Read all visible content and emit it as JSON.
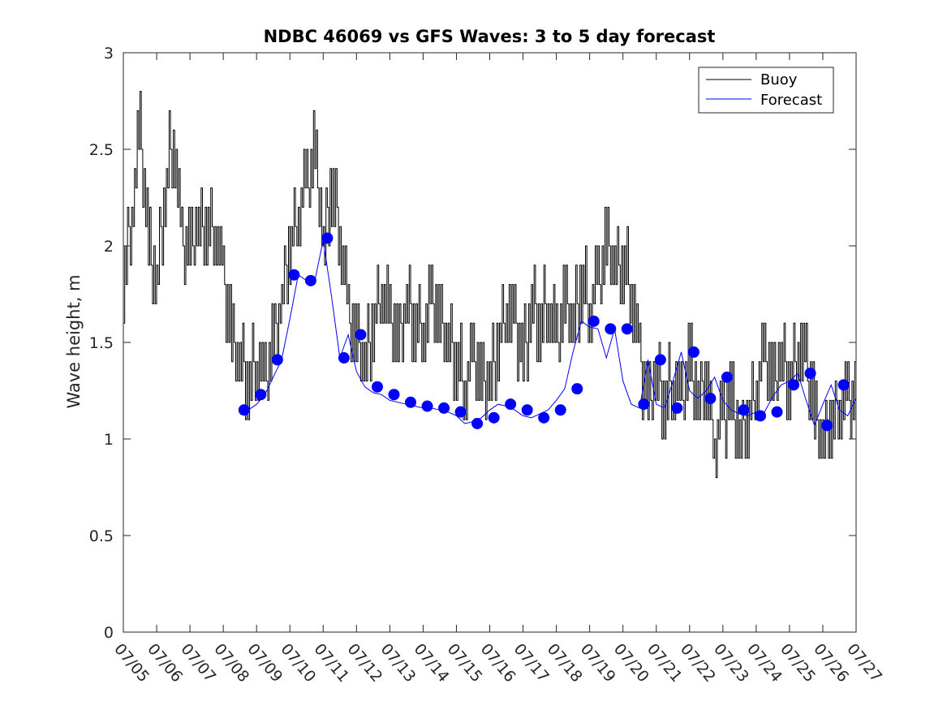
{
  "chart_data": {
    "type": "line",
    "title": "NDBC 46069 vs GFS Waves: 3 to 5 day forecast",
    "xlabel": "",
    "ylabel": "Wave height, m",
    "ylim": [
      0,
      3
    ],
    "yticks": [
      "0",
      "0.5",
      "1",
      "1.5",
      "2",
      "2.5",
      "3"
    ],
    "xlim": [
      "07/05",
      "07/27"
    ],
    "xticks": [
      "07/05",
      "07/06",
      "07/07",
      "07/08",
      "07/09",
      "07/10",
      "07/11",
      "07/12",
      "07/13",
      "07/14",
      "07/15",
      "07/16",
      "07/17",
      "07/18",
      "07/19",
      "07/20",
      "07/21",
      "07/22",
      "07/23",
      "07/24",
      "07/25",
      "07/26",
      "07/27"
    ],
    "legend": {
      "position": "top-right",
      "entries": [
        "Buoy",
        "Forecast"
      ]
    },
    "colors": {
      "buoy": "#000000",
      "forecast": "#0000ff"
    },
    "grid": false,
    "series": [
      {
        "name": "Buoy",
        "x": [
          "07/05 00:00",
          "07/05 06:00",
          "07/05 12:00",
          "07/05 18:00",
          "07/06 00:00",
          "07/06 06:00",
          "07/06 12:00",
          "07/06 18:00",
          "07/07 00:00",
          "07/07 06:00",
          "07/07 12:00",
          "07/07 18:00",
          "07/08 00:00",
          "07/08 06:00",
          "07/08 12:00",
          "07/08 18:00",
          "07/09 00:00",
          "07/09 06:00",
          "07/09 12:00",
          "07/09 18:00",
          "07/10 00:00",
          "07/10 06:00",
          "07/10 12:00",
          "07/10 18:00",
          "07/11 00:00",
          "07/11 06:00",
          "07/11 12:00",
          "07/11 18:00",
          "07/12 00:00",
          "07/12 06:00",
          "07/12 12:00",
          "07/12 18:00",
          "07/13 00:00",
          "07/13 06:00",
          "07/13 12:00",
          "07/13 18:00",
          "07/14 00:00",
          "07/14 06:00",
          "07/14 12:00",
          "07/14 18:00",
          "07/15 00:00",
          "07/15 06:00",
          "07/15 12:00",
          "07/15 18:00",
          "07/16 00:00",
          "07/16 06:00",
          "07/16 12:00",
          "07/16 18:00",
          "07/17 00:00",
          "07/17 06:00",
          "07/17 12:00",
          "07/17 18:00",
          "07/18 00:00",
          "07/18 06:00",
          "07/18 12:00",
          "07/18 18:00",
          "07/19 00:00",
          "07/19 06:00",
          "07/19 12:00",
          "07/19 18:00",
          "07/20 00:00",
          "07/20 06:00",
          "07/20 12:00",
          "07/20 18:00",
          "07/21 00:00",
          "07/21 06:00",
          "07/21 12:00",
          "07/21 18:00",
          "07/22 00:00",
          "07/22 06:00",
          "07/22 12:00",
          "07/22 18:00",
          "07/23 00:00",
          "07/23 06:00",
          "07/23 12:00",
          "07/23 18:00",
          "07/24 00:00",
          "07/24 06:00",
          "07/24 12:00",
          "07/24 18:00",
          "07/25 00:00",
          "07/25 06:00",
          "07/25 12:00",
          "07/25 18:00",
          "07/26 00:00",
          "07/26 06:00",
          "07/26 12:00",
          "07/26 18:00"
        ],
        "values": [
          1.8,
          2.2,
          2.6,
          2.0,
          1.8,
          2.3,
          2.6,
          2.0,
          2.0,
          2.1,
          2.1,
          2.1,
          1.8,
          1.5,
          1.4,
          1.3,
          1.4,
          1.3,
          1.5,
          1.7,
          2.0,
          2.2,
          2.3,
          2.5,
          2.0,
          2.3,
          2.1,
          1.6,
          1.5,
          1.4,
          1.6,
          1.8,
          1.6,
          1.5,
          1.7,
          1.6,
          1.6,
          1.7,
          1.6,
          1.5,
          1.4,
          1.3,
          1.4,
          1.3,
          1.3,
          1.5,
          1.7,
          1.6,
          1.4,
          1.7,
          1.6,
          1.7,
          1.5,
          1.7,
          1.6,
          1.8,
          1.7,
          1.8,
          2.0,
          1.9,
          1.9,
          1.8,
          1.4,
          1.2,
          1.3,
          1.2,
          1.3,
          1.2,
          1.4,
          1.2,
          1.3,
          1.0,
          1.1,
          1.2,
          1.0,
          1.1,
          1.3,
          1.4,
          1.3,
          1.4,
          1.3,
          1.5,
          1.4,
          1.1,
          1.0,
          1.1,
          1.2,
          1.2
        ]
      },
      {
        "name": "Forecast",
        "x": [
          "07/08 18:00",
          "07/09 00:00",
          "07/09 06:00",
          "07/09 12:00",
          "07/09 18:00",
          "07/10 00:00",
          "07/10 06:00",
          "07/10 12:00",
          "07/10 18:00",
          "07/11 00:00",
          "07/11 06:00",
          "07/11 12:00",
          "07/11 18:00",
          "07/12 00:00",
          "07/12 06:00",
          "07/12 12:00",
          "07/12 18:00",
          "07/13 00:00",
          "07/13 06:00",
          "07/13 12:00",
          "07/13 18:00",
          "07/14 00:00",
          "07/14 06:00",
          "07/14 12:00",
          "07/14 18:00",
          "07/15 00:00",
          "07/15 06:00",
          "07/15 12:00",
          "07/15 18:00",
          "07/16 00:00",
          "07/16 06:00",
          "07/16 12:00",
          "07/16 18:00",
          "07/17 00:00",
          "07/17 06:00",
          "07/17 12:00",
          "07/17 18:00",
          "07/18 00:00",
          "07/18 06:00",
          "07/18 12:00",
          "07/18 18:00",
          "07/19 00:00",
          "07/19 06:00",
          "07/19 12:00",
          "07/19 18:00",
          "07/20 00:00",
          "07/20 06:00",
          "07/20 12:00",
          "07/20 18:00",
          "07/21 00:00",
          "07/21 06:00",
          "07/21 12:00",
          "07/21 18:00",
          "07/22 00:00",
          "07/22 06:00",
          "07/22 12:00",
          "07/22 18:00",
          "07/23 00:00",
          "07/23 06:00",
          "07/23 12:00",
          "07/23 18:00",
          "07/24 00:00",
          "07/24 06:00",
          "07/24 12:00",
          "07/24 18:00",
          "07/25 00:00",
          "07/25 06:00",
          "07/25 12:00",
          "07/25 18:00",
          "07/26 00:00",
          "07/26 06:00",
          "07/26 12:00",
          "07/26 18:00",
          "07/27 00:00"
        ],
        "values": [
          1.15,
          1.18,
          1.23,
          1.32,
          1.41,
          1.62,
          1.85,
          1.82,
          1.82,
          2.03,
          1.74,
          1.42,
          1.54,
          1.35,
          1.27,
          1.24,
          1.23,
          1.2,
          1.19,
          1.18,
          1.17,
          1.16,
          1.16,
          1.15,
          1.14,
          1.12,
          1.08,
          1.09,
          1.11,
          1.15,
          1.18,
          1.17,
          1.15,
          1.12,
          1.11,
          1.13,
          1.15,
          1.2,
          1.26,
          1.45,
          1.61,
          1.58,
          1.57,
          1.42,
          1.57,
          1.3,
          1.18,
          1.16,
          1.41,
          1.18,
          1.16,
          1.3,
          1.45,
          1.25,
          1.21,
          1.25,
          1.32,
          1.2,
          1.15,
          1.13,
          1.12,
          1.14,
          1.14,
          1.22,
          1.28,
          1.3,
          1.34,
          1.2,
          1.07,
          1.18,
          1.28,
          1.15,
          1.12,
          1.21
        ]
      }
    ],
    "forecast_markers": {
      "x": [
        "07/08 15:00",
        "07/09 03:00",
        "07/09 15:00",
        "07/10 03:00",
        "07/10 15:00",
        "07/11 03:00",
        "07/11 15:00",
        "07/12 03:00",
        "07/12 15:00",
        "07/13 03:00",
        "07/13 15:00",
        "07/14 03:00",
        "07/14 15:00",
        "07/15 03:00",
        "07/15 15:00",
        "07/16 03:00",
        "07/16 15:00",
        "07/17 03:00",
        "07/17 15:00",
        "07/18 03:00",
        "07/18 15:00",
        "07/19 03:00",
        "07/19 15:00",
        "07/20 03:00",
        "07/20 15:00",
        "07/21 03:00",
        "07/21 15:00",
        "07/22 03:00",
        "07/22 15:00",
        "07/23 03:00",
        "07/23 15:00",
        "07/24 03:00",
        "07/24 15:00",
        "07/25 03:00",
        "07/25 15:00",
        "07/26 03:00",
        "07/26 15:00"
      ],
      "values": [
        1.15,
        1.23,
        1.41,
        1.85,
        1.82,
        2.04,
        1.42,
        1.54,
        1.27,
        1.23,
        1.19,
        1.17,
        1.16,
        1.14,
        1.08,
        1.11,
        1.18,
        1.15,
        1.11,
        1.15,
        1.26,
        1.61,
        1.57,
        1.57,
        1.18,
        1.41,
        1.16,
        1.45,
        1.21,
        1.32,
        1.15,
        1.12,
        1.14,
        1.28,
        1.34,
        1.07,
        1.28
      ]
    }
  }
}
